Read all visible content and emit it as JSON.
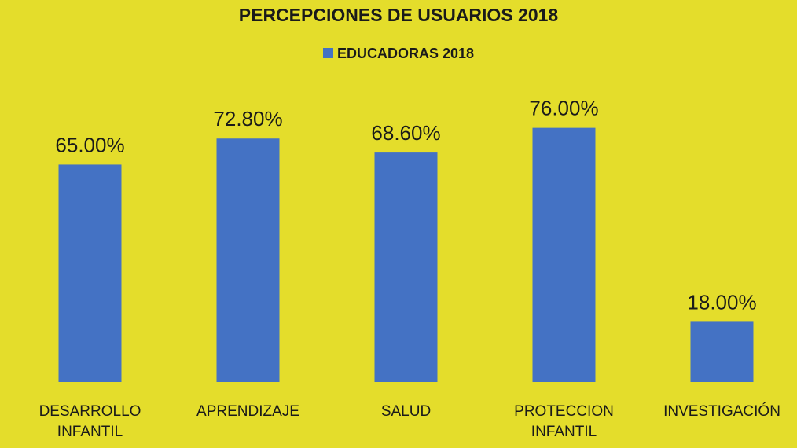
{
  "chart_data": {
    "type": "bar",
    "title": "PERCEPCIONES DE USUARIOS 2018",
    "categories": [
      "DESARROLLO INFANTIL",
      "APRENDIZAJE",
      "SALUD",
      "PROTECCION INFANTIL",
      "INVESTIGACIÓN"
    ],
    "series": [
      {
        "name": "EDUCADORAS 2018",
        "color": "#4472c4",
        "values": [
          65,
          72.8,
          68.6,
          76,
          18
        ],
        "value_labels": [
          "65.00%",
          "72.80%",
          "68.60%",
          "76.00%",
          "18.00%"
        ]
      }
    ]
  }
}
